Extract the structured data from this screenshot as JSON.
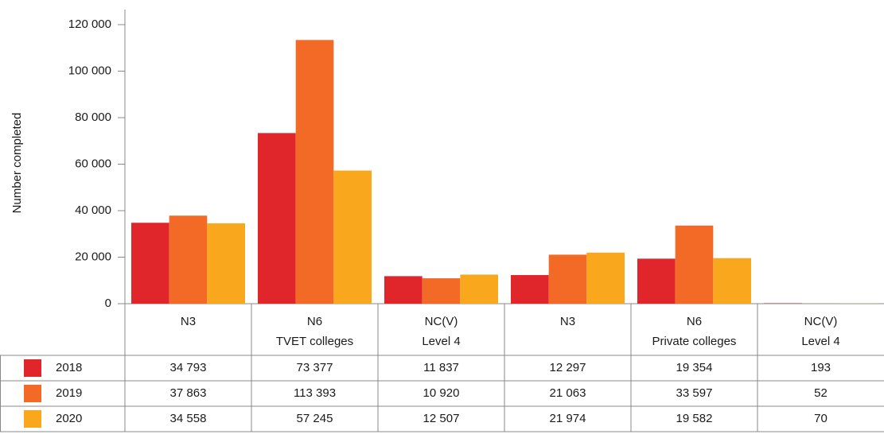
{
  "chart_data": {
    "type": "bar",
    "y_label": "Number completed",
    "categories": [
      [
        "N3"
      ],
      [
        "N6"
      ],
      [
        "NC(V)",
        "Level 4"
      ],
      [
        "N3"
      ],
      [
        "N6"
      ],
      [
        "NC(V)",
        "Level 4"
      ]
    ],
    "groups": [
      "TVET colleges",
      "Private colleges"
    ],
    "series": [
      {
        "name": "2018",
        "color": "#e0262b",
        "values": [
          34793,
          73377,
          11837,
          12297,
          19354,
          193
        ],
        "value_labels": [
          "34 793",
          "73 377",
          "11 837",
          "12 297",
          "19 354",
          "193"
        ]
      },
      {
        "name": "2019",
        "color": "#f26a25",
        "values": [
          37863,
          113393,
          10920,
          21063,
          33597,
          52
        ],
        "value_labels": [
          "37 863",
          "113 393",
          "10 920",
          "21 063",
          "33 597",
          "52"
        ]
      },
      {
        "name": "2020",
        "color": "#f9a81e",
        "values": [
          34558,
          57245,
          12507,
          21974,
          19582,
          70
        ],
        "value_labels": [
          "34 558",
          "57 245",
          "12 507",
          "21 974",
          "19 582",
          "70"
        ]
      }
    ],
    "ylim": [
      0,
      120000
    ],
    "yticks": [
      0,
      {
        "value": 20000,
        "label": "20 000"
      },
      {
        "value": 40000,
        "label": "40 000"
      },
      {
        "value": 60000,
        "label": "60 000"
      },
      {
        "value": 80000,
        "label": "80 000"
      },
      {
        "value": 100000,
        "label": "100 000"
      },
      {
        "value": 120000,
        "label": "120 000"
      }
    ],
    "grid": false
  }
}
